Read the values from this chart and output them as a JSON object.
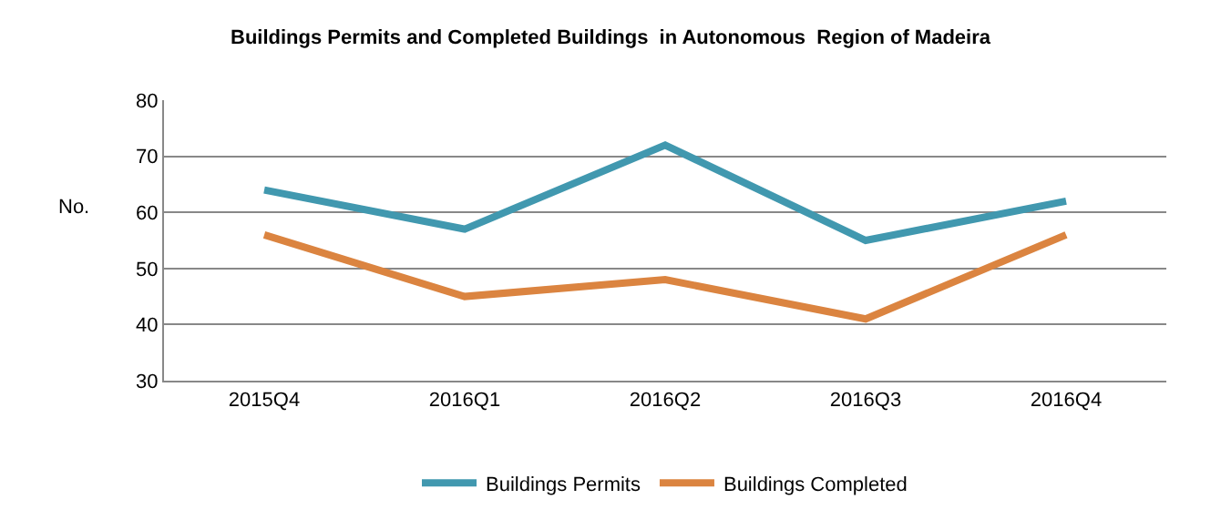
{
  "chart_data": {
    "type": "line",
    "title": "Buildings Permits and Completed Buildings  in Autonomous  Region of Madeira",
    "ylabel": "No.",
    "categories": [
      "2015Q4",
      "2016Q1",
      "2016Q2",
      "2016Q3",
      "2016Q4"
    ],
    "series": [
      {
        "name": "Buildings Permits",
        "color": "#4198af",
        "values": [
          64,
          57,
          72,
          55,
          62
        ]
      },
      {
        "name": "Buildings Completed",
        "color": "#db8440",
        "values": [
          56,
          45,
          48,
          41,
          56
        ]
      }
    ],
    "ylim": [
      30,
      80
    ],
    "yticks": [
      30,
      40,
      50,
      60,
      70,
      80
    ],
    "grid": "y",
    "legend": "bottom",
    "marker": "none",
    "line_style": "solid"
  }
}
